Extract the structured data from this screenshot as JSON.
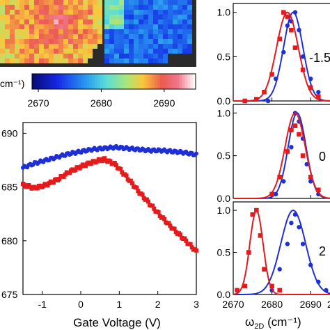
{
  "colors": {
    "blue": "#1f2fd6",
    "red": "#e41a1c",
    "map_background": "#2b2b2b"
  },
  "colorbar": {
    "unit_label": "cm⁻¹)",
    "ticks": [
      "2670",
      "2680",
      "2690"
    ],
    "range": [
      2669,
      2695
    ]
  },
  "main_plot": {
    "xlabel": "Gate Voltage (V)",
    "x_ticks": [
      "-1",
      "0",
      "1",
      "2",
      "3"
    ],
    "y_ticks": [
      "690",
      "685",
      "680",
      "675"
    ]
  },
  "side_plots": {
    "xlabel_main": "ω",
    "xlabel_sub": "2D",
    "xlabel_unit": " (cm⁻¹)",
    "x_ticks": [
      "2670",
      "2680",
      "2690",
      "2"
    ],
    "y_ticks": [
      "1.0",
      "0.5",
      "0.0"
    ],
    "panel_labels": [
      "-1.5",
      "0",
      "2"
    ]
  },
  "chart_data": [
    {
      "type": "heatmap",
      "description_items": [
        "Raman 2D peak position map"
      ],
      "colorbar_ticks": [
        2670,
        2680,
        2690
      ],
      "zlim": [
        2669,
        2695
      ]
    },
    {
      "type": "scatter",
      "xlabel": "Gate Voltage (V)",
      "ylabel": "",
      "xlim": [
        -1.5,
        3.0
      ],
      "ylim": [
        2675,
        2691
      ],
      "series": [
        {
          "color": "#1f2fd6",
          "x": [
            -1.5,
            -1.2,
            -0.9,
            -0.6,
            -0.3,
            0.0,
            0.3,
            0.6,
            0.9,
            1.2,
            1.5,
            1.8,
            2.1,
            2.4,
            2.7,
            3.0
          ],
          "y": [
            2686.8,
            2687.2,
            2687.5,
            2687.8,
            2688.1,
            2688.3,
            2688.5,
            2688.6,
            2688.7,
            2688.6,
            2688.5,
            2688.4,
            2688.4,
            2688.3,
            2688.2,
            2688.0
          ]
        },
        {
          "color": "#e41a1c",
          "x": [
            -1.5,
            -1.2,
            -0.9,
            -0.6,
            -0.3,
            0.0,
            0.3,
            0.6,
            0.9,
            1.2,
            1.5,
            1.8,
            2.1,
            2.4,
            2.7,
            3.0
          ],
          "y": [
            2685.2,
            2684.9,
            2685.2,
            2685.7,
            2686.4,
            2686.9,
            2687.3,
            2687.6,
            2687.1,
            2685.9,
            2684.6,
            2683.4,
            2682.2,
            2681.1,
            2680.1,
            2679.0
          ]
        }
      ]
    },
    {
      "type": "scatter",
      "panel": "-1.5",
      "xlim": [
        2670,
        2695
      ],
      "ylim": [
        0,
        1.1
      ],
      "series": [
        {
          "color": "#1f2fd6",
          "fit_center": 2685.5,
          "fit_sigma": 2.5,
          "x": [
            2679,
            2681,
            2683,
            2684,
            2685,
            2686,
            2687,
            2688,
            2690,
            2692
          ],
          "y": [
            0.0,
            0.25,
            0.55,
            0.85,
            0.9,
            1.0,
            0.8,
            0.5,
            0.25,
            0.1
          ]
        },
        {
          "color": "#e41a1c",
          "fit_center": 2684.0,
          "fit_sigma": 2.8,
          "x": [
            2673,
            2676,
            2678,
            2680,
            2682,
            2683,
            2684,
            2685,
            2686,
            2688,
            2690,
            2692
          ],
          "y": [
            0.0,
            0.02,
            0.1,
            0.3,
            0.7,
            1.0,
            0.95,
            0.8,
            0.6,
            0.35,
            0.15,
            0.05
          ]
        }
      ]
    },
    {
      "type": "scatter",
      "panel": "0",
      "xlim": [
        2670,
        2695
      ],
      "ylim": [
        0,
        1.1
      ],
      "series": [
        {
          "color": "#1f2fd6",
          "fit_center": 2686.5,
          "fit_sigma": 2.3,
          "x": [
            2681,
            2683,
            2685,
            2686,
            2687,
            2688,
            2689,
            2690,
            2692
          ],
          "y": [
            0.05,
            0.2,
            0.6,
            1.0,
            0.9,
            0.7,
            0.4,
            0.2,
            0.05
          ]
        },
        {
          "color": "#e41a1c",
          "fit_center": 2686.0,
          "fit_sigma": 2.6,
          "x": [
            2680,
            2682,
            2684,
            2685,
            2686,
            2687,
            2688,
            2690,
            2692
          ],
          "y": [
            0.05,
            0.25,
            0.55,
            0.8,
            0.85,
            0.75,
            0.5,
            0.25,
            0.1
          ]
        }
      ]
    },
    {
      "type": "scatter",
      "panel": "2",
      "xlim": [
        2670,
        2695
      ],
      "ylim": [
        0,
        1.1
      ],
      "series": [
        {
          "color": "#1f2fd6",
          "fit_center": 2685.5,
          "fit_sigma": 3.2,
          "x": [
            2680,
            2682,
            2684,
            2685,
            2686,
            2687,
            2688,
            2690,
            2692,
            2694
          ],
          "y": [
            0.05,
            0.3,
            0.6,
            0.85,
            0.95,
            0.8,
            0.6,
            0.35,
            0.15,
            0.05
          ]
        },
        {
          "color": "#e41a1c",
          "fit_center": 2676.0,
          "fit_sigma": 1.7,
          "x": [
            2671,
            2673,
            2674,
            2675,
            2676,
            2677,
            2678,
            2680,
            2682
          ],
          "y": [
            0.05,
            0.1,
            0.5,
            0.95,
            1.0,
            0.7,
            0.3,
            0.1,
            0.05
          ]
        }
      ]
    }
  ]
}
